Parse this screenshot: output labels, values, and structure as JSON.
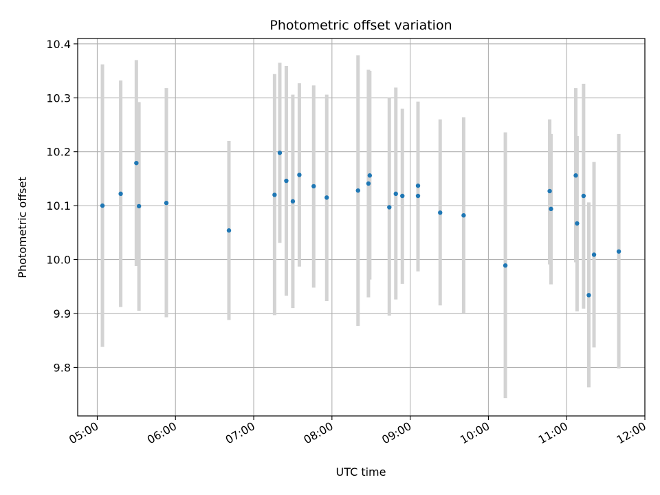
{
  "chart_data": {
    "type": "scatter",
    "title": "Photometric offset variation",
    "xlabel": "UTC time",
    "ylabel": "Photometric offset",
    "x_axis_type": "time",
    "xlim": [
      "04:45",
      "12:00"
    ],
    "ylim": [
      9.71,
      10.41
    ],
    "x_ticks": [
      "05:00",
      "06:00",
      "07:00",
      "08:00",
      "09:00",
      "10:00",
      "11:00",
      "12:00"
    ],
    "y_ticks": [
      "9.8",
      "9.9",
      "10.0",
      "10.1",
      "10.2",
      "10.3",
      "10.4"
    ],
    "grid": true,
    "marker_color": "#1f77b4",
    "errorbar_color": "#d3d3d3",
    "points": [
      {
        "time": "05:04",
        "y": 10.1,
        "y_low": 9.838,
        "y_high": 10.362
      },
      {
        "time": "05:18",
        "y": 10.122,
        "y_low": 9.912,
        "y_high": 10.332
      },
      {
        "time": "05:30",
        "y": 10.179,
        "y_low": 9.988,
        "y_high": 10.37
      },
      {
        "time": "05:32",
        "y": 10.099,
        "y_low": 9.905,
        "y_high": 10.292
      },
      {
        "time": "05:53",
        "y": 10.105,
        "y_low": 9.893,
        "y_high": 10.318
      },
      {
        "time": "06:41",
        "y": 10.054,
        "y_low": 9.888,
        "y_high": 10.22
      },
      {
        "time": "07:16",
        "y": 10.12,
        "y_low": 9.897,
        "y_high": 10.344
      },
      {
        "time": "07:20",
        "y": 10.198,
        "y_low": 10.031,
        "y_high": 10.365
      },
      {
        "time": "07:25",
        "y": 10.146,
        "y_low": 9.933,
        "y_high": 10.359
      },
      {
        "time": "07:30",
        "y": 10.108,
        "y_low": 9.91,
        "y_high": 10.306
      },
      {
        "time": "07:35",
        "y": 10.157,
        "y_low": 9.987,
        "y_high": 10.327
      },
      {
        "time": "07:46",
        "y": 10.136,
        "y_low": 9.948,
        "y_high": 10.323
      },
      {
        "time": "07:56",
        "y": 10.115,
        "y_low": 9.923,
        "y_high": 10.306
      },
      {
        "time": "08:20",
        "y": 10.128,
        "y_low": 9.877,
        "y_high": 10.379
      },
      {
        "time": "08:28",
        "y": 10.141,
        "y_low": 9.93,
        "y_high": 10.352
      },
      {
        "time": "08:29",
        "y": 10.156,
        "y_low": 9.963,
        "y_high": 10.35
      },
      {
        "time": "08:44",
        "y": 10.097,
        "y_low": 9.896,
        "y_high": 10.3
      },
      {
        "time": "08:49",
        "y": 10.122,
        "y_low": 9.926,
        "y_high": 10.319
      },
      {
        "time": "08:54",
        "y": 10.118,
        "y_low": 9.955,
        "y_high": 10.28
      },
      {
        "time": "09:06",
        "y": 10.137,
        "y_low": 9.978,
        "y_high": 10.293
      },
      {
        "time": "09:06",
        "y": 10.118,
        "y_low": 9.979,
        "y_high": 10.258
      },
      {
        "time": "09:23",
        "y": 10.087,
        "y_low": 9.915,
        "y_high": 10.26
      },
      {
        "time": "09:41",
        "y": 10.082,
        "y_low": 9.901,
        "y_high": 10.264
      },
      {
        "time": "10:13",
        "y": 9.989,
        "y_low": 9.743,
        "y_high": 10.236
      },
      {
        "time": "10:47",
        "y": 10.127,
        "y_low": 9.991,
        "y_high": 10.26
      },
      {
        "time": "10:48",
        "y": 10.094,
        "y_low": 9.954,
        "y_high": 10.233
      },
      {
        "time": "11:07",
        "y": 10.156,
        "y_low": 9.995,
        "y_high": 10.318
      },
      {
        "time": "11:08",
        "y": 10.067,
        "y_low": 9.904,
        "y_high": 10.229
      },
      {
        "time": "11:13",
        "y": 10.118,
        "y_low": 9.909,
        "y_high": 10.326
      },
      {
        "time": "11:17",
        "y": 9.934,
        "y_low": 9.763,
        "y_high": 10.106
      },
      {
        "time": "11:21",
        "y": 10.009,
        "y_low": 9.837,
        "y_high": 10.181
      },
      {
        "time": "11:40",
        "y": 10.015,
        "y_low": 9.798,
        "y_high": 10.233
      }
    ]
  }
}
